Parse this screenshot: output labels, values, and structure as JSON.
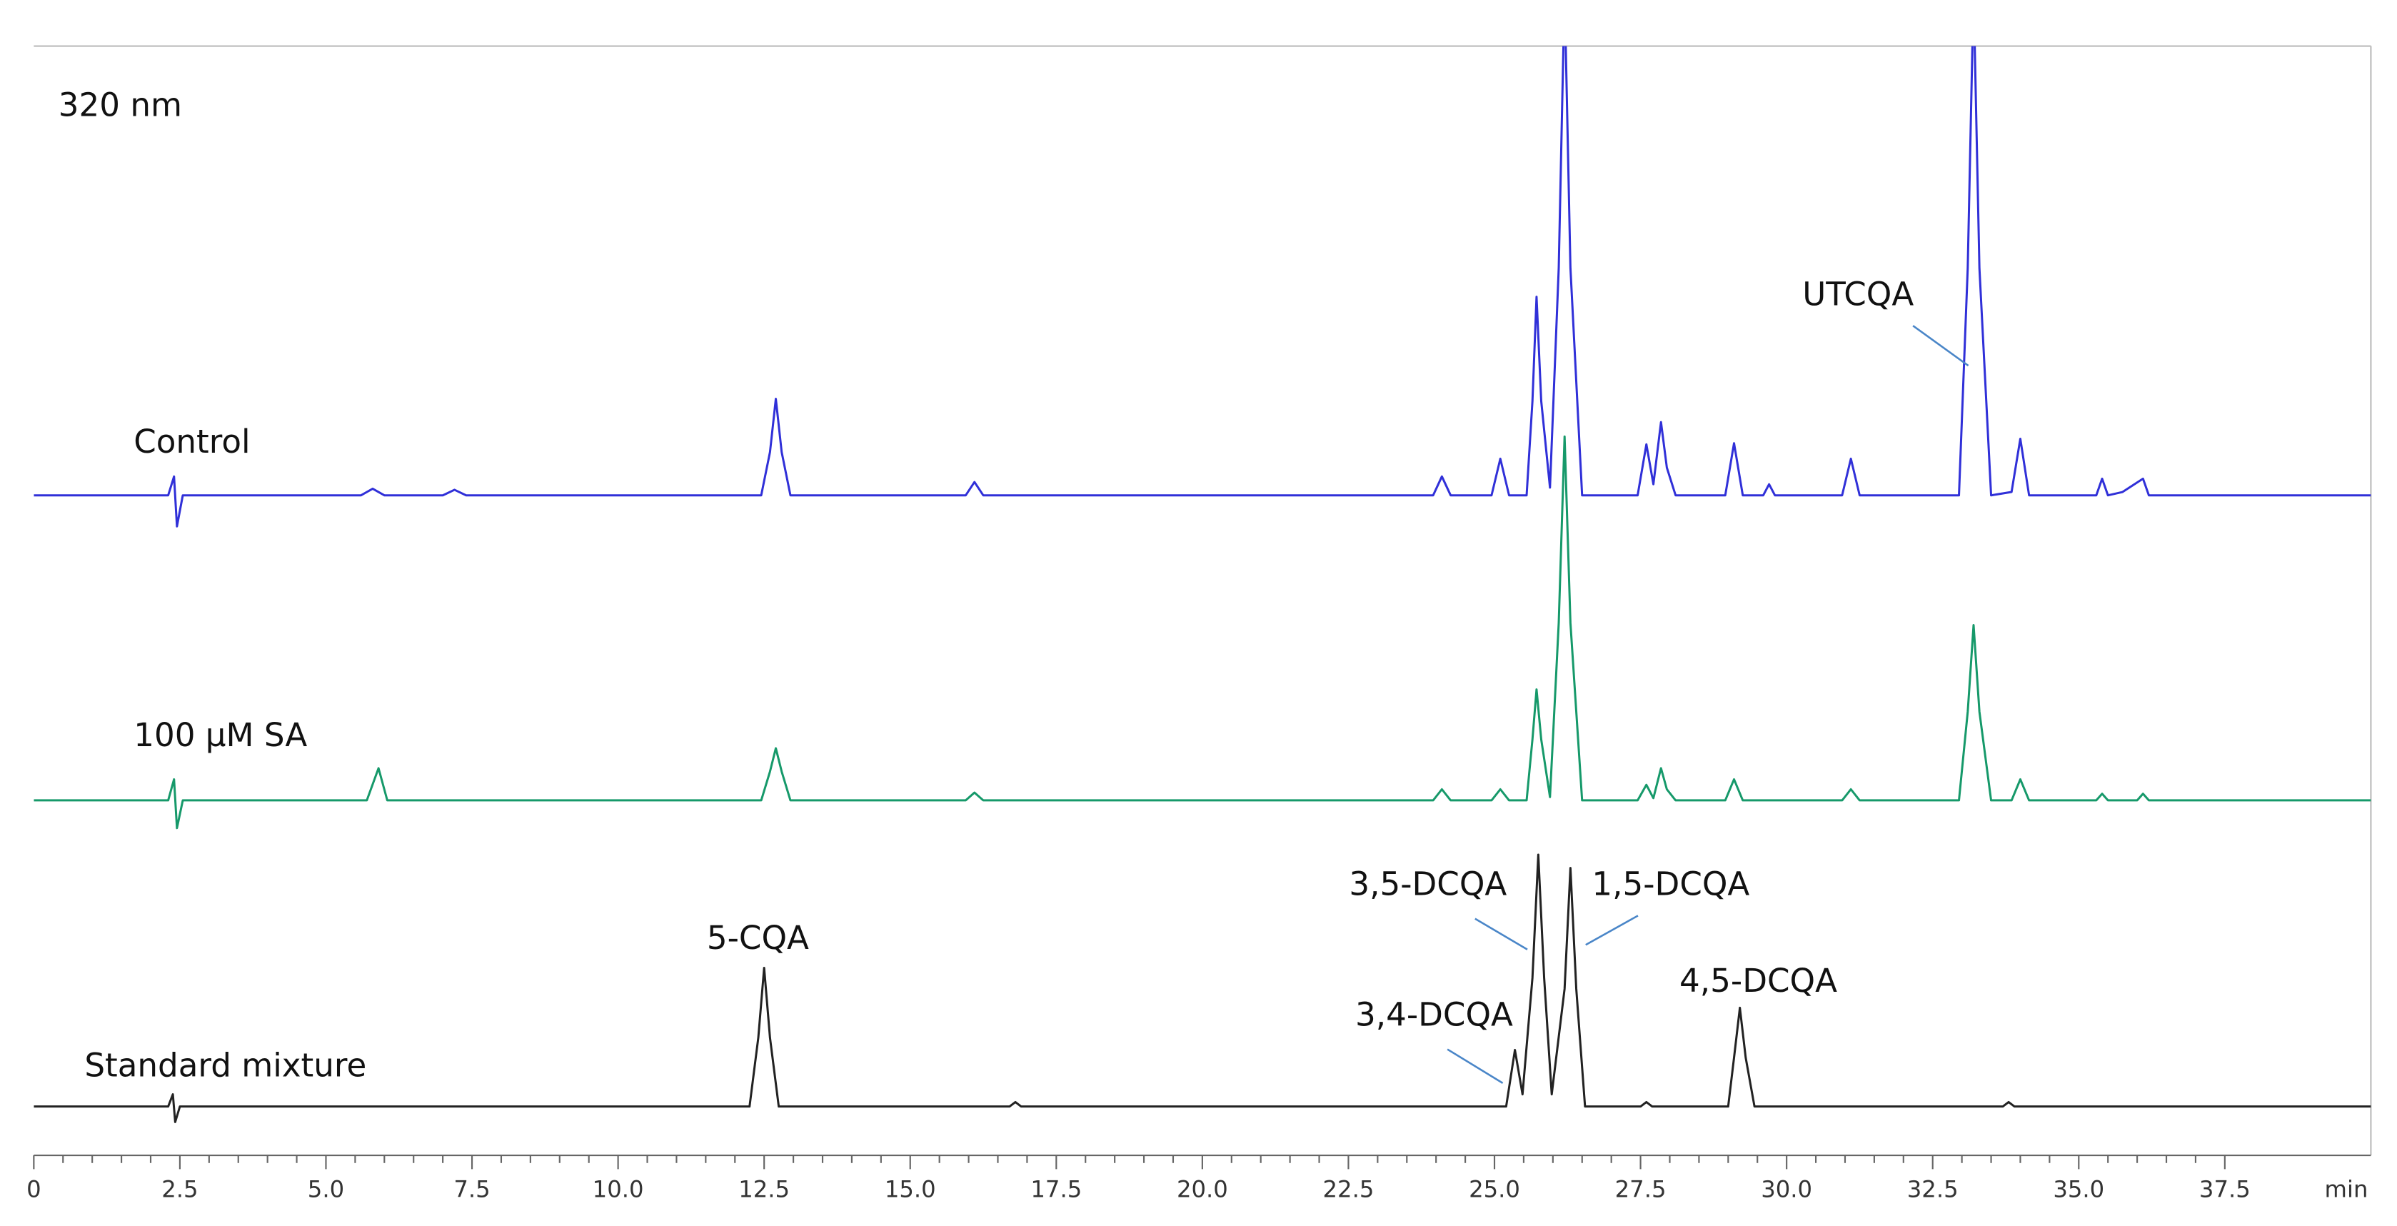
{
  "chart_data": {
    "type": "line",
    "title": "320 nm",
    "x_label": "min",
    "xlim": [
      0,
      40
    ],
    "ylim": [
      0,
      100
    ],
    "xticks": [
      0,
      2.5,
      {
        "value": 5,
        "label": "5.0"
      },
      7.5,
      {
        "value": 10,
        "label": "10.0"
      },
      12.5,
      {
        "value": 15,
        "label": "15.0"
      },
      17.5,
      {
        "value": 20,
        "label": "20.0"
      },
      22.5,
      {
        "value": 25,
        "label": "25.0"
      },
      27.5,
      {
        "value": 30,
        "label": "30.0"
      },
      32.5,
      {
        "value": 35,
        "label": "35.0"
      },
      37.5
    ],
    "series": [
      {
        "name": "Control",
        "color": "#3030d8",
        "x": [
          0,
          2.3,
          2.4,
          2.45,
          2.55,
          5.6,
          5.8,
          6.0,
          7.0,
          7.2,
          7.4,
          12.45,
          12.6,
          12.7,
          12.8,
          12.95,
          15.95,
          16.1,
          16.25,
          23.95,
          24.1,
          24.25,
          24.95,
          25.1,
          25.25,
          25.55,
          25.65,
          25.72,
          25.8,
          25.95,
          26.1,
          26.2,
          26.3,
          26.5,
          27.45,
          27.6,
          27.72,
          27.85,
          27.95,
          28.1,
          28.95,
          29.1,
          29.25,
          29.6,
          29.7,
          29.8,
          30.95,
          31.1,
          31.25,
          32.95,
          33.1,
          33.2,
          33.3,
          33.5,
          33.85,
          34.0,
          34.15,
          35.3,
          35.4,
          35.5,
          35.75,
          36.1,
          36.2,
          40
        ],
        "values": [
          59.5,
          59.5,
          61.2,
          56.7,
          59.5,
          59.5,
          60.1,
          59.5,
          59.5,
          60.0,
          59.5,
          59.5,
          63.4,
          68.2,
          63.4,
          59.5,
          59.5,
          60.7,
          59.5,
          59.5,
          61.2,
          59.5,
          59.5,
          62.8,
          59.5,
          59.5,
          68.0,
          77.4,
          68.0,
          60.2,
          80,
          105,
          80,
          59.5,
          59.5,
          64.1,
          60.5,
          66.1,
          62.0,
          59.5,
          59.5,
          64.2,
          59.5,
          59.5,
          60.5,
          59.5,
          59.5,
          62.8,
          59.5,
          59.5,
          80,
          105,
          80,
          59.5,
          59.8,
          64.6,
          59.5,
          59.5,
          61.0,
          59.5,
          59.8,
          61.0,
          59.5,
          59.5
        ]
      },
      {
        "name": "100 μM SA",
        "color": "#16996a",
        "x": [
          0,
          2.3,
          2.4,
          2.45,
          2.55,
          5.7,
          5.9,
          6.05,
          12.45,
          12.6,
          12.7,
          12.8,
          12.95,
          15.95,
          16.1,
          16.25,
          23.95,
          24.1,
          24.25,
          24.95,
          25.1,
          25.25,
          25.55,
          25.65,
          25.72,
          25.8,
          25.95,
          26.1,
          26.2,
          26.3,
          26.5,
          27.45,
          27.6,
          27.72,
          27.85,
          27.95,
          28.1,
          28.95,
          29.1,
          29.25,
          30.95,
          31.1,
          31.25,
          32.95,
          33.1,
          33.2,
          33.3,
          33.5,
          33.85,
          34.0,
          34.15,
          35.3,
          35.4,
          35.5,
          36.0,
          36.1,
          36.2,
          40
        ],
        "values": [
          32,
          32,
          33.9,
          29.5,
          32,
          32,
          34.9,
          32,
          32,
          34.6,
          36.7,
          34.6,
          32,
          32,
          32.7,
          32,
          32,
          33.0,
          32,
          32,
          33.0,
          32,
          32,
          37.5,
          42.0,
          37.5,
          32.3,
          48,
          64.8,
          48,
          32,
          32,
          33.4,
          32.2,
          34.9,
          33,
          32,
          32,
          33.9,
          32,
          32,
          33.0,
          32,
          32,
          40,
          47.8,
          40,
          32,
          32,
          33.9,
          32,
          32,
          32.6,
          32,
          32,
          32.6,
          32,
          32
        ]
      },
      {
        "name": "Standard mixture",
        "color": "#222222",
        "x": [
          0,
          2.3,
          2.38,
          2.42,
          2.5,
          12.25,
          12.4,
          12.5,
          12.6,
          12.75,
          16.7,
          16.8,
          16.9,
          25.2,
          25.35,
          25.48,
          25.65,
          25.75,
          25.85,
          25.98,
          26.2,
          26.3,
          26.4,
          26.55,
          27.5,
          27.6,
          27.7,
          29.0,
          29.1,
          29.2,
          29.3,
          29.45,
          33.7,
          33.8,
          33.9,
          40
        ],
        "values": [
          4.4,
          4.4,
          5.5,
          3.0,
          4.4,
          4.4,
          10.6,
          16.9,
          10.6,
          4.4,
          4.4,
          4.8,
          4.4,
          4.4,
          9.5,
          5.5,
          16,
          27.1,
          16,
          5.5,
          15,
          25.9,
          15,
          4.4,
          4.4,
          4.8,
          4.4,
          4.4,
          8.8,
          13.3,
          8.8,
          4.4,
          4.4,
          4.8,
          4.4,
          4.4
        ]
      }
    ],
    "annotations": [
      {
        "text": "UTCQA"
      },
      {
        "text": "5-CQA"
      },
      {
        "text": "3,5-DCQA"
      },
      {
        "text": "1,5-DCQA"
      },
      {
        "text": "3,4-DCQA"
      },
      {
        "text": "4,5-DCQA"
      }
    ]
  }
}
